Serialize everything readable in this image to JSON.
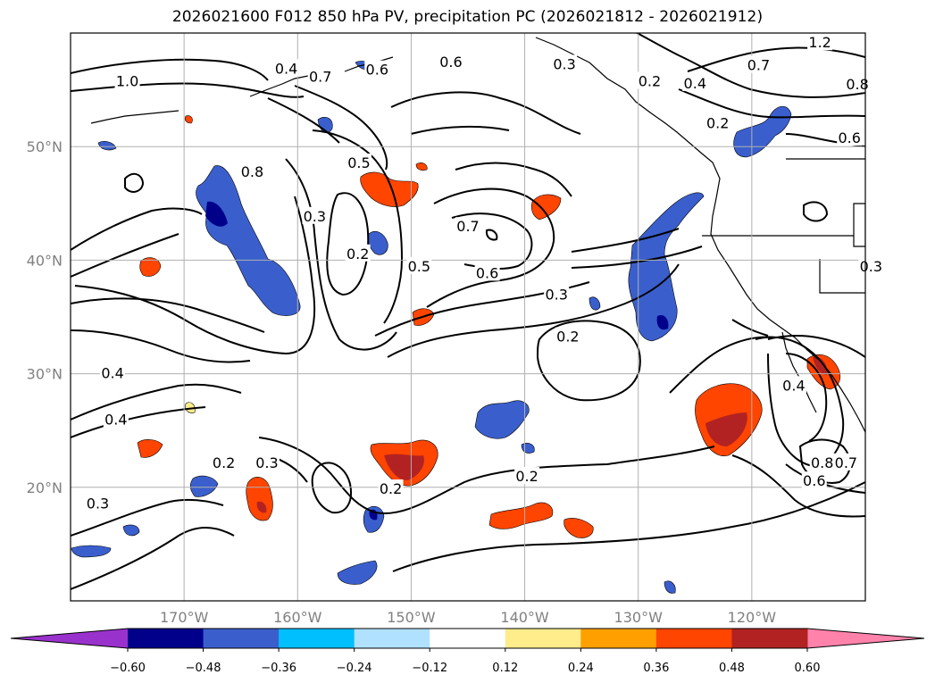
{
  "title": "2026021600 F012 850 hPa PV, precipitation PC (2026021812 - 2026021912)",
  "map": {
    "lon_range": [
      -180,
      -110
    ],
    "lat_range": [
      10,
      60
    ],
    "lon_ticks": [
      {
        "lon": -170,
        "label": "170°W"
      },
      {
        "lon": -160,
        "label": "160°W"
      },
      {
        "lon": -150,
        "label": "150°W"
      },
      {
        "lon": -140,
        "label": "140°W"
      },
      {
        "lon": -130,
        "label": "130°W"
      },
      {
        "lon": -120,
        "label": "120°W"
      }
    ],
    "lat_ticks": [
      {
        "lat": 20,
        "label": "20°N"
      },
      {
        "lat": 30,
        "label": "30°N"
      },
      {
        "lat": 40,
        "label": "40°N"
      },
      {
        "lat": 50,
        "label": "50°N"
      }
    ],
    "grid": true
  },
  "contour_labels": [
    {
      "text": "1.0",
      "lon": -175,
      "lat": 55.8
    },
    {
      "text": "0.4",
      "lon": -161,
      "lat": 56.9
    },
    {
      "text": "0.7",
      "lon": -158,
      "lat": 56.2
    },
    {
      "text": "0.6",
      "lon": -153,
      "lat": 56.8
    },
    {
      "text": "0.6",
      "lon": -146.5,
      "lat": 57.5
    },
    {
      "text": "0.3",
      "lon": -136.5,
      "lat": 57.3
    },
    {
      "text": "0.2",
      "lon": -129,
      "lat": 55.8
    },
    {
      "text": "0.4",
      "lon": -125,
      "lat": 55.6
    },
    {
      "text": "0.2",
      "lon": -123,
      "lat": 52.1
    },
    {
      "text": "0.7",
      "lon": -119.4,
      "lat": 57.2
    },
    {
      "text": "1.2",
      "lon": -114,
      "lat": 59.2
    },
    {
      "text": "0.8",
      "lon": -110.7,
      "lat": 55.5
    },
    {
      "text": "0.6",
      "lon": -111.4,
      "lat": 50.8
    },
    {
      "text": "0.8",
      "lon": -164,
      "lat": 47.8
    },
    {
      "text": "0.5",
      "lon": -154.6,
      "lat": 48.6
    },
    {
      "text": "0.3",
      "lon": -158.5,
      "lat": 43.9
    },
    {
      "text": "0.2",
      "lon": -154.7,
      "lat": 40.6
    },
    {
      "text": "0.7",
      "lon": -145,
      "lat": 43
    },
    {
      "text": "0.5",
      "lon": -149.3,
      "lat": 39.5
    },
    {
      "text": "0.6",
      "lon": -143.3,
      "lat": 38.9
    },
    {
      "text": "0.3",
      "lon": -137.2,
      "lat": 37.0
    },
    {
      "text": "0.2",
      "lon": -136.2,
      "lat": 33.3
    },
    {
      "text": "0.3",
      "lon": -109.5,
      "lat": 39.5
    },
    {
      "text": "0.4",
      "lon": -176.3,
      "lat": 30.1
    },
    {
      "text": "0.4",
      "lon": -176,
      "lat": 26
    },
    {
      "text": "0.2",
      "lon": -166.5,
      "lat": 22.2
    },
    {
      "text": "0.3",
      "lon": -162.7,
      "lat": 22.2
    },
    {
      "text": "0.2",
      "lon": -151.8,
      "lat": 19.9
    },
    {
      "text": "0.2",
      "lon": -139.8,
      "lat": 21.0
    },
    {
      "text": "0.3",
      "lon": -177.6,
      "lat": 18.6
    },
    {
      "text": "0.4",
      "lon": -116.3,
      "lat": 29.0
    },
    {
      "text": "0.8",
      "lon": -113.8,
      "lat": 22.2
    },
    {
      "text": "0.7",
      "lon": -111.7,
      "lat": 22.2
    },
    {
      "text": "0.6",
      "lon": -114.5,
      "lat": 20.6
    }
  ],
  "colorbar": {
    "levels": [
      -0.6,
      -0.48,
      -0.36,
      -0.24,
      -0.12,
      0.12,
      0.24,
      0.36,
      0.48,
      0.6
    ],
    "tick_labels": [
      "−0.60",
      "−0.48",
      "−0.36",
      "−0.24",
      "−0.12",
      "0.12",
      "0.24",
      "0.36",
      "0.48",
      "0.60"
    ],
    "colors": [
      "#00008b",
      "#3a5fcd",
      "#00bfff",
      "#b0e2ff",
      "#ffffff",
      "#ffec8b",
      "#ff9f00",
      "#ff4500",
      "#b22222"
    ],
    "under_color": "#9932cc",
    "over_color": "#ff82ab"
  }
}
